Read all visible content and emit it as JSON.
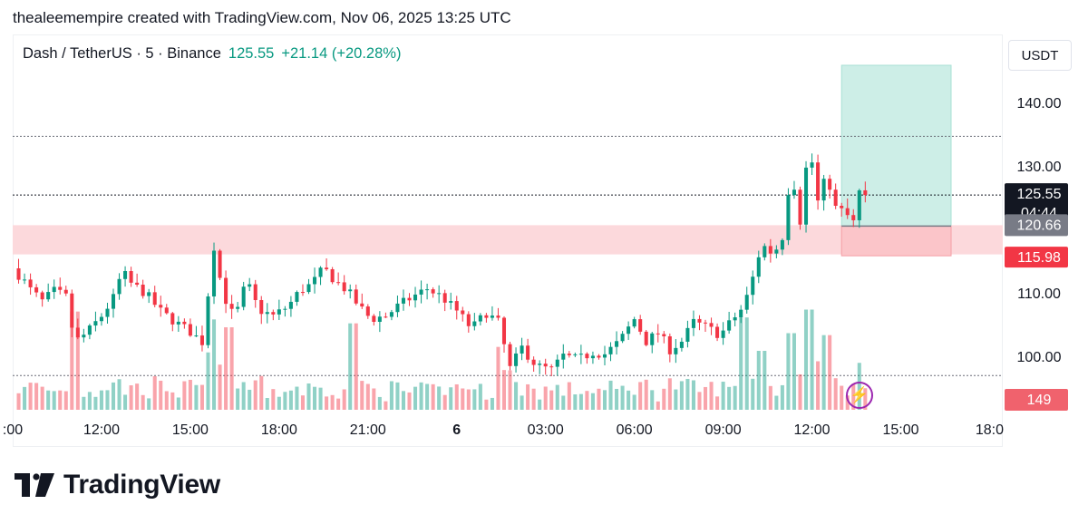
{
  "credit": "thealeemempire created with TradingView.com, Nov 06, 2025 13:25 UTC",
  "header": {
    "symbol": "Dash / TetherUS · 5 · Binance",
    "price": "125.55",
    "change": "+21.14 (+20.28%)"
  },
  "unit": "USDT",
  "brand": "TradingView",
  "colors": {
    "up": "#089981",
    "down": "#f23645",
    "target_zone": "#cdeee7",
    "stop_zone": "#fbc5c9",
    "resistance_zone": "#fcd9dc"
  },
  "labels": {
    "last_price": "125.55",
    "countdown": "04:44",
    "entry": "120.66",
    "stop": "115.98",
    "volume": "149"
  },
  "chart_data": {
    "type": "candlestick",
    "title": "Dash / TetherUS · 5 · Binance",
    "y_ticks": [
      "140.00",
      "130.00",
      "110.00",
      "100.00"
    ],
    "y_tick_values": [
      140,
      130,
      110,
      100
    ],
    "x_ticks": [
      ":00",
      "12:00",
      "15:00",
      "18:00",
      "21:00",
      "6",
      "03:00",
      "06:00",
      "09:00",
      "12:00",
      "15:00",
      "18:0"
    ],
    "x_tick_hours": [
      9,
      12,
      15,
      18,
      21,
      24,
      27,
      30,
      33,
      36,
      39,
      42
    ],
    "ylim": [
      96.5,
      147
    ],
    "xlim": [
      9,
      42.6
    ],
    "last_price": 125.55,
    "dotted_levels": [
      134.8,
      125.55,
      97.1
    ],
    "resistance_zone": [
      116.2,
      120.8
    ],
    "position": {
      "start_hour": 37.0,
      "end_hour": 40.7,
      "entry": 120.66,
      "stop": 115.98,
      "target": 146.0
    },
    "price_path": [
      [
        9.0,
        114.0
      ],
      [
        9.3,
        112.5
      ],
      [
        9.6,
        110.6
      ],
      [
        10.0,
        108.8
      ],
      [
        10.4,
        110.4
      ],
      [
        10.8,
        109.5
      ],
      [
        11.1,
        102.4
      ],
      [
        11.5,
        103.8
      ],
      [
        12.0,
        106.5
      ],
      [
        12.4,
        109.3
      ],
      [
        12.7,
        113.5
      ],
      [
        13.0,
        111.6
      ],
      [
        13.5,
        110.0
      ],
      [
        14.0,
        107.2
      ],
      [
        14.5,
        105.5
      ],
      [
        15.0,
        104.0
      ],
      [
        15.4,
        102.4
      ],
      [
        15.8,
        117.5
      ],
      [
        16.1,
        110.0
      ],
      [
        16.5,
        106.0
      ],
      [
        16.9,
        112.0
      ],
      [
        17.3,
        107.5
      ],
      [
        17.8,
        106.5
      ],
      [
        18.3,
        108.0
      ],
      [
        18.7,
        110.5
      ],
      [
        19.1,
        111.5
      ],
      [
        19.5,
        114.0
      ],
      [
        19.9,
        112.0
      ],
      [
        20.3,
        110.5
      ],
      [
        20.7,
        108.0
      ],
      [
        21.1,
        106.0
      ],
      [
        21.6,
        106.5
      ],
      [
        22.0,
        108.0
      ],
      [
        22.5,
        109.5
      ],
      [
        23.0,
        110.8
      ],
      [
        23.5,
        109.5
      ],
      [
        24.0,
        107.3
      ],
      [
        24.5,
        104.5
      ],
      [
        25.0,
        107.0
      ],
      [
        25.4,
        105.5
      ],
      [
        25.8,
        98.2
      ],
      [
        26.2,
        101.5
      ],
      [
        26.7,
        98.6
      ],
      [
        27.2,
        98.0
      ],
      [
        27.6,
        100.2
      ],
      [
        28.1,
        99.6
      ],
      [
        28.6,
        100.8
      ],
      [
        29.0,
        100.5
      ],
      [
        29.5,
        102.5
      ],
      [
        30.0,
        106.0
      ],
      [
        30.4,
        102.5
      ],
      [
        30.8,
        103.8
      ],
      [
        31.2,
        101.2
      ],
      [
        31.6,
        102.5
      ],
      [
        32.0,
        105.5
      ],
      [
        32.4,
        104.8
      ],
      [
        32.9,
        103.5
      ],
      [
        33.3,
        105.8
      ],
      [
        33.7,
        108.0
      ],
      [
        34.0,
        112.5
      ],
      [
        34.3,
        117.8
      ],
      [
        34.7,
        116.2
      ],
      [
        35.0,
        119.0
      ],
      [
        35.3,
        129.8
      ],
      [
        35.6,
        121.5
      ],
      [
        35.9,
        133.8
      ],
      [
        36.2,
        124.5
      ],
      [
        36.5,
        128.8
      ],
      [
        36.8,
        123.5
      ],
      [
        37.1,
        122.8
      ],
      [
        37.4,
        121.2
      ],
      [
        37.6,
        126.0
      ],
      [
        37.8,
        125.55
      ]
    ],
    "volume": {
      "max": 600,
      "last": 149,
      "spikes": [
        [
          11.1,
          500
        ],
        [
          15.8,
          460
        ],
        [
          16.3,
          420
        ],
        [
          20.5,
          440
        ],
        [
          25.4,
          320
        ],
        [
          33.7,
          470
        ],
        [
          34.3,
          300
        ],
        [
          35.3,
          390
        ],
        [
          35.9,
          510
        ],
        [
          36.5,
          380
        ]
      ]
    }
  }
}
